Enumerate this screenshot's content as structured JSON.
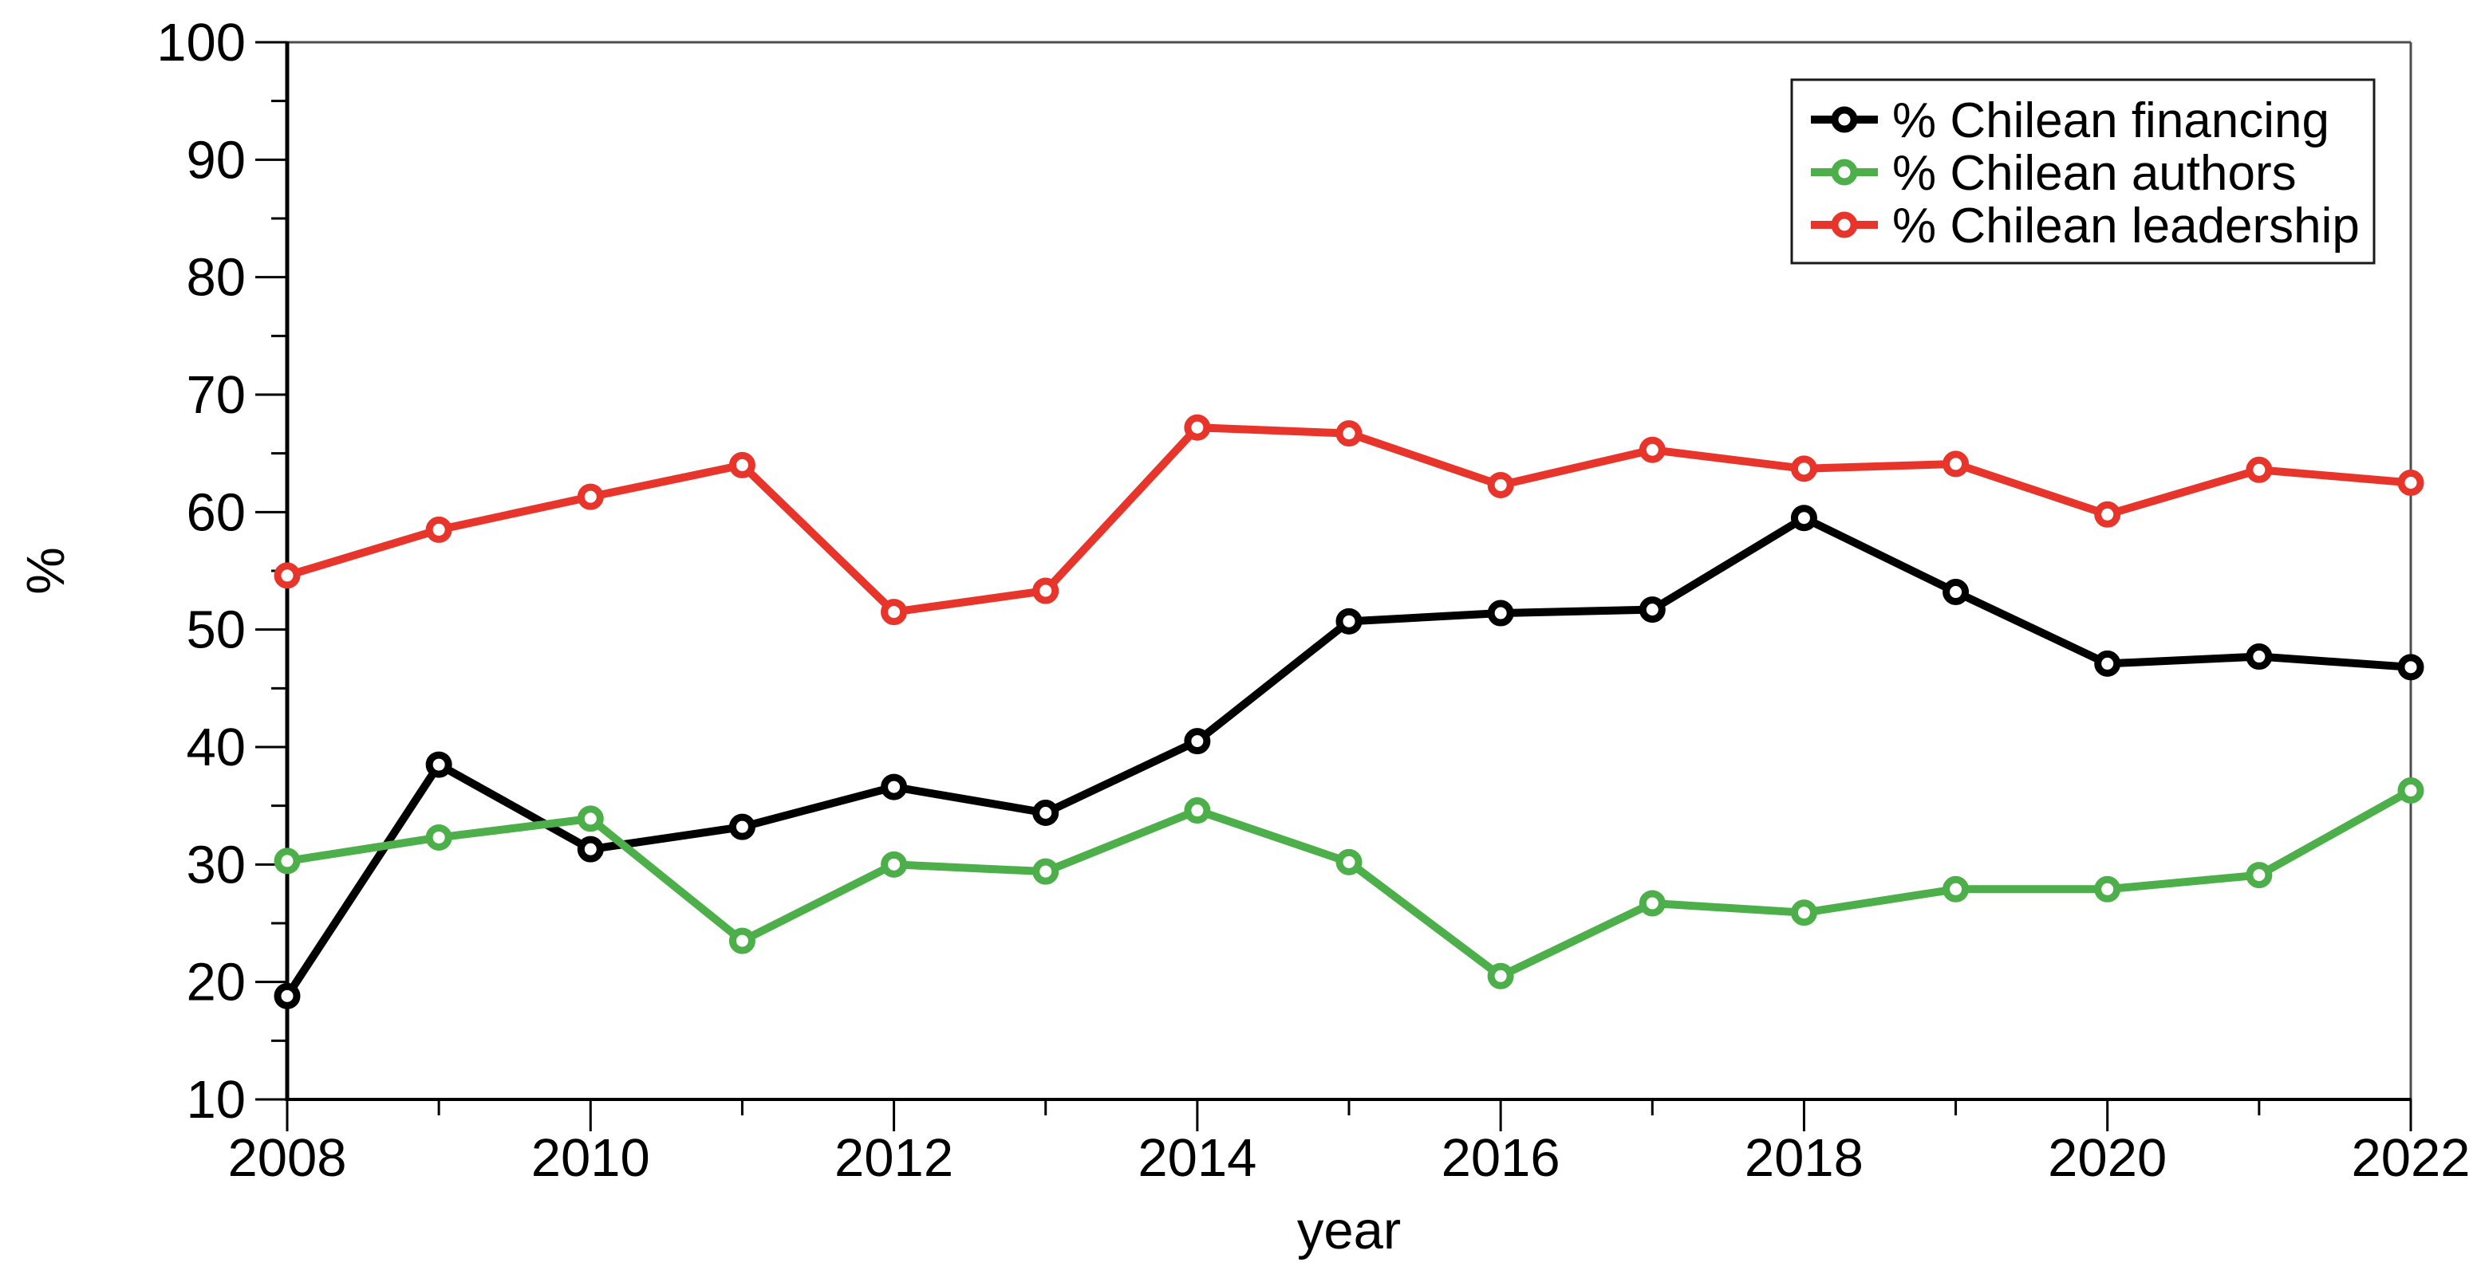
{
  "figure": {
    "background": "#ffffff",
    "frame_color": "#4d4d4d",
    "axis_color": "#000000",
    "text_color": "#000000"
  },
  "chart_data": {
    "type": "line",
    "title": "",
    "xlabel": "year",
    "ylabel": "%",
    "xlim": [
      2008,
      2022
    ],
    "ylim": [
      10,
      100
    ],
    "grid": false,
    "legend_position": "top-right",
    "x": [
      2008,
      2009,
      2010,
      2011,
      2012,
      2013,
      2014,
      2015,
      2016,
      2017,
      2018,
      2019,
      2020,
      2021,
      2022
    ],
    "x_major_ticks": [
      2008,
      2010,
      2012,
      2014,
      2016,
      2018,
      2020,
      2022
    ],
    "x_minor_ticks": [
      2009,
      2011,
      2013,
      2015,
      2017,
      2019,
      2021
    ],
    "y_major_ticks": [
      10,
      20,
      30,
      40,
      50,
      60,
      70,
      80,
      90,
      100
    ],
    "y_minor_ticks": [
      15,
      25,
      35,
      45,
      55,
      65,
      75,
      85,
      95
    ],
    "series": [
      {
        "name": "% Chilean financing",
        "slug": "chilean-financing",
        "color": "#000000",
        "marker": "open-circle",
        "values": [
          18.8,
          38.5,
          31.3,
          33.2,
          36.6,
          34.4,
          40.5,
          50.7,
          51.4,
          51.7,
          59.5,
          53.2,
          47.1,
          47.7,
          46.8
        ]
      },
      {
        "name": "% Chilean authors",
        "slug": "chilean-authors",
        "color": "#4daf4a",
        "marker": "open-circle",
        "values": [
          30.3,
          32.3,
          33.9,
          23.5,
          30.0,
          29.4,
          34.6,
          30.2,
          20.5,
          26.7,
          25.9,
          27.9,
          27.9,
          29.1,
          36.3
        ]
      },
      {
        "name": "% Chilean leadership",
        "slug": "chilean-leadership",
        "color": "#e8352b",
        "marker": "open-circle",
        "values": [
          54.6,
          58.5,
          61.3,
          64.0,
          51.5,
          53.3,
          67.2,
          66.7,
          62.3,
          65.3,
          63.7,
          64.1,
          59.8,
          63.6,
          62.5
        ]
      }
    ]
  }
}
